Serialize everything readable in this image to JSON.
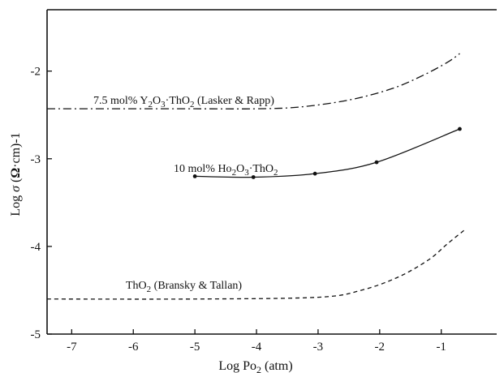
{
  "chart_data": {
    "type": "line",
    "title": "",
    "xlabel": "Log Po2 (atm)",
    "ylabel": "Log σ (Ω·cm)-1",
    "xlim": [
      -7.4,
      -0.1
    ],
    "ylim": [
      -5.0,
      -1.3
    ],
    "x_ticks": [
      -7,
      -6,
      -5,
      -4,
      -3,
      -2,
      -1
    ],
    "x_tick_labels": [
      "-7",
      "-6",
      "-5",
      "-4",
      "-3",
      "-2",
      "-1"
    ],
    "y_ticks": [
      -2,
      -3,
      -4,
      -5
    ],
    "y_tick_labels": [
      "-2",
      "-3",
      "-4",
      "-5"
    ],
    "grid": false,
    "legend": "none (series labelled on plot)",
    "series": [
      {
        "name": "7.5 mol% Y2O3·ThO2 (Lasker & Rapp)",
        "line_style": "dash-dot",
        "markers": false,
        "x": [
          -7.4,
          -5.0,
          -4.0,
          -3.3,
          -2.5,
          -1.8,
          -1.3,
          -0.9,
          -0.7
        ],
        "y": [
          -2.43,
          -2.43,
          -2.43,
          -2.41,
          -2.33,
          -2.2,
          -2.05,
          -1.9,
          -1.8
        ]
      },
      {
        "name": "10 mol% Ho2O3·ThO2",
        "line_style": "solid",
        "markers": true,
        "x": [
          -5.0,
          -4.05,
          -3.05,
          -2.05,
          -0.7
        ],
        "y": [
          -3.2,
          -3.21,
          -3.17,
          -3.04,
          -2.66
        ]
      },
      {
        "name": "ThO2 (Bransky & Tallan)",
        "line_style": "dashed",
        "markers": false,
        "x": [
          -7.4,
          -5.0,
          -3.0,
          -2.3,
          -1.7,
          -1.2,
          -0.9,
          -0.6
        ],
        "y": [
          -4.6,
          -4.6,
          -4.58,
          -4.5,
          -4.35,
          -4.15,
          -3.97,
          -3.8
        ]
      }
    ]
  }
}
